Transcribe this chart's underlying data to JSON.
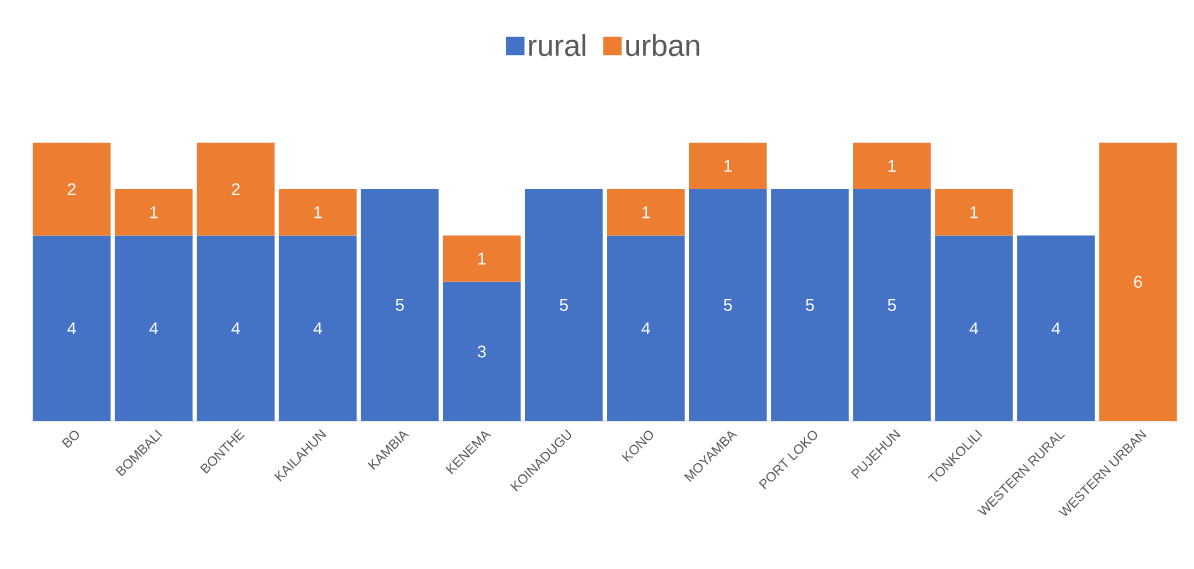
{
  "chart_data": {
    "type": "bar",
    "stacked": true,
    "categories": [
      "BO",
      "BOMBALI",
      "BONTHE",
      "KAILAHUN",
      "KAMBIA",
      "KENEMA",
      "KOINADUGU",
      "KONO",
      "MOYAMBA",
      "PORT LOKO",
      "PUJEHUN",
      "TONKOLILI",
      "WESTERN RURAL",
      "WESTERN URBAN"
    ],
    "series": [
      {
        "name": "rural",
        "color": "#4472c4",
        "values": [
          4,
          4,
          4,
          4,
          5,
          3,
          5,
          4,
          5,
          5,
          5,
          4,
          4,
          null
        ]
      },
      {
        "name": "urban",
        "color": "#ed7d31",
        "values": [
          2,
          1,
          2,
          1,
          null,
          1,
          null,
          1,
          1,
          null,
          1,
          1,
          null,
          6
        ]
      }
    ],
    "data_labels": true,
    "legend": "top",
    "tick_labels": "x"
  }
}
